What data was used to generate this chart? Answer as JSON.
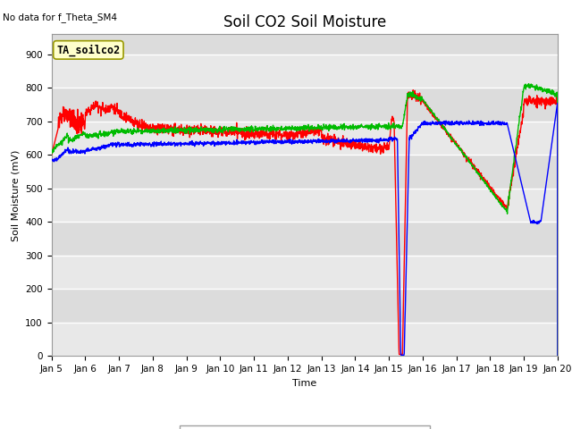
{
  "title": "Soil CO2 Soil Moisture",
  "no_data_text": "No data for f_Theta_SM4",
  "legend_box_text": "TA_soilco2",
  "xlabel": "Time",
  "ylabel": "Soil Moisture (mV)",
  "ylim": [
    0,
    960
  ],
  "yticks": [
    0,
    100,
    200,
    300,
    400,
    500,
    600,
    700,
    800,
    900
  ],
  "bg_color": "#E8E8E8",
  "plot_bg_color": "#E0E0E0",
  "line1_color": "#FF0000",
  "line2_color": "#00BB00",
  "line3_color": "#0000FF",
  "line_width": 1.0,
  "title_fontsize": 12,
  "axis_label_fontsize": 8,
  "tick_fontsize": 7.5,
  "band_colors": [
    "#DCDCDC",
    "#E8E8E8"
  ]
}
